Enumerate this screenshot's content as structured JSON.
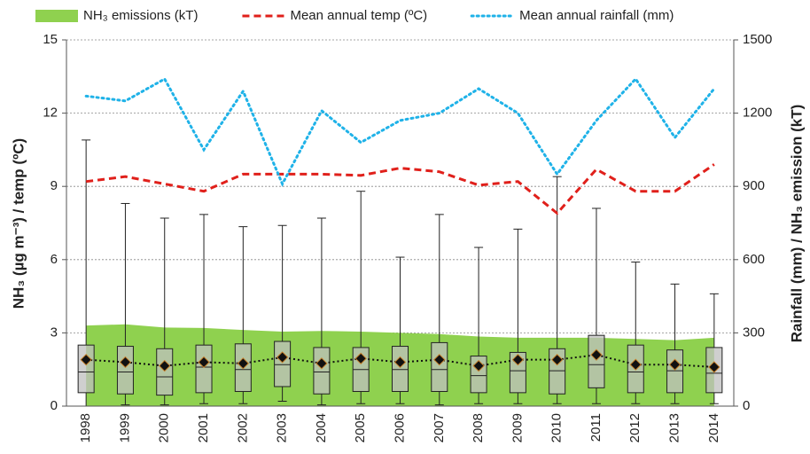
{
  "chart_data": {
    "type": "combo",
    "categories": [
      "1998",
      "1999",
      "2000",
      "2001",
      "2002",
      "2003",
      "2004",
      "2005",
      "2006",
      "2007",
      "2008",
      "2009",
      "2010",
      "2011",
      "2012",
      "2013",
      "2014"
    ],
    "y_label": "NH₃ (µg m⁻³) / temp (ºC)",
    "y2_label": "Rainfall (mm) / NH₃ emission (kT)",
    "ylim": [
      0,
      15
    ],
    "yticks": [
      0,
      3,
      6,
      9,
      12,
      15
    ],
    "y2lim": [
      0,
      1500
    ],
    "y2ticks": [
      0,
      300,
      600,
      900,
      1200,
      1500
    ],
    "grid": true,
    "legend": "top",
    "series": [
      {
        "type": "area",
        "name": "NH₃ emissions (kT)",
        "color": "#8fd14f",
        "axis": "y2",
        "values": [
          330,
          335,
          322,
          320,
          312,
          305,
          308,
          305,
          300,
          295,
          285,
          280,
          280,
          280,
          275,
          270,
          280
        ]
      },
      {
        "type": "line",
        "name": "Mean annual temp  (ºC)",
        "color": "#e0201b",
        "dash": "dashed",
        "values": [
          9.2,
          9.4,
          9.1,
          8.8,
          9.5,
          9.5,
          9.5,
          9.45,
          9.75,
          9.6,
          9.05,
          9.2,
          7.9,
          9.7,
          8.8,
          8.8,
          9.9
        ]
      },
      {
        "type": "line",
        "name": "Mean annual rainfall (mm)",
        "color": "#1fb2e8",
        "dash": "dotted",
        "axis": "y2",
        "values": [
          1270,
          1250,
          1340,
          1050,
          1290,
          910,
          1210,
          1080,
          1170,
          1200,
          1300,
          1200,
          950,
          1170,
          1340,
          1100,
          1300
        ]
      },
      {
        "type": "box",
        "color": "#bfbfbf",
        "mean_color": "#111111",
        "min": [
          0,
          0.05,
          0.05,
          0.1,
          0.1,
          0.2,
          0.05,
          0.1,
          0.1,
          0.05,
          0.1,
          0.1,
          0.1,
          0.1,
          0.1,
          0.1,
          0.1
        ],
        "q1": [
          0.55,
          0.5,
          0.45,
          0.55,
          0.6,
          0.8,
          0.5,
          0.6,
          0.6,
          0.6,
          0.55,
          0.55,
          0.5,
          0.75,
          0.55,
          0.55,
          0.55
        ],
        "median": [
          1.4,
          1.4,
          1.2,
          1.6,
          1.5,
          1.7,
          1.4,
          1.5,
          1.5,
          1.5,
          1.25,
          1.45,
          1.45,
          1.7,
          1.4,
          1.45,
          1.35
        ],
        "q3": [
          2.5,
          2.45,
          2.35,
          2.5,
          2.55,
          2.65,
          2.4,
          2.4,
          2.45,
          2.6,
          2.05,
          2.2,
          2.35,
          2.9,
          2.5,
          2.3,
          2.4
        ],
        "max": [
          10.9,
          8.3,
          7.7,
          7.85,
          7.35,
          7.4,
          7.7,
          8.8,
          6.1,
          7.85,
          6.5,
          7.25,
          9.4,
          8.1,
          5.9,
          5.0,
          4.6
        ],
        "mean": [
          1.9,
          1.8,
          1.65,
          1.8,
          1.75,
          2.0,
          1.75,
          1.95,
          1.8,
          1.9,
          1.65,
          1.9,
          1.9,
          2.1,
          1.7,
          1.7,
          1.6
        ]
      }
    ]
  }
}
